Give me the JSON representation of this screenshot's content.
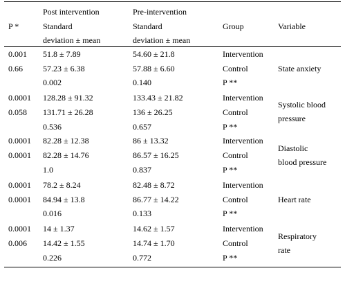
{
  "table": {
    "header": {
      "p_label": "P *",
      "post_title": "Post intervention",
      "post_sub1": "Standard",
      "post_sub2": "deviation  ±  mean",
      "pre_title": "Pre-intervention",
      "pre_sub1": "Standard",
      "pre_sub2": "deviation  ±  mean",
      "group": "Group",
      "variable": "Variable"
    },
    "blocks": [
      {
        "variable_lines": [
          "State anxiety"
        ],
        "rows": [
          {
            "p": "0.001",
            "post": "51.8 ± 7.89",
            "pre": "54.60 ± 21.8",
            "group": "Intervention"
          },
          {
            "p": "0.66",
            "post": "57.23 ± 6.38",
            "pre": "57.88 ± 6.60",
            "group": "Control"
          },
          {
            "p": "",
            "post": "0.002",
            "pre": "0.140",
            "group": "P **"
          }
        ]
      },
      {
        "variable_lines": [
          "Systolic blood",
          "pressure"
        ],
        "rows": [
          {
            "p": "0.0001",
            "post": "128.28 ± 91.32",
            "pre": "133.43 ± 21.82",
            "group": "Intervention"
          },
          {
            "p": "0.058",
            "post": "131.71 ± 26.28",
            "pre": "136 ± 26.25",
            "group": "Control"
          },
          {
            "p": "",
            "post": "0.536",
            "pre": "0.657",
            "group": "P **"
          }
        ]
      },
      {
        "variable_lines": [
          "Diastolic",
          "blood pressure"
        ],
        "rows": [
          {
            "p": "0.0001",
            "post": "82.28 ± 12.38",
            "pre": "86 ± 13.32",
            "group": "Intervention"
          },
          {
            "p": "0.0001",
            "post": "82.28 ± 14.76",
            "pre": "86.57 ± 16.25",
            "group": "Control"
          },
          {
            "p": "",
            "post": "1.0",
            "pre": "0.837",
            "group": "P **"
          }
        ]
      },
      {
        "variable_lines": [
          "Heart rate"
        ],
        "rows": [
          {
            "p": "0.0001",
            "post": "78.2 ± 8.24",
            "pre": "82.48 ± 8.72",
            "group": "Intervention"
          },
          {
            "p": "0.0001",
            "post": "84.94 ± 13.8",
            "pre": "86.77 ± 14.22",
            "group": "Control"
          },
          {
            "p": "",
            "post": "0.016",
            "pre": "0.133",
            "group": "P **"
          }
        ]
      },
      {
        "variable_lines": [
          "Respiratory",
          "rate"
        ],
        "rows": [
          {
            "p": "0.0001",
            "post": "14 ± 1.37",
            "pre": "14.62 ± 1.57",
            "group": "Intervention"
          },
          {
            "p": "0.006",
            "post": "14.42 ± 1.55",
            "pre": "14.74 ± 1.70",
            "group": "Control"
          },
          {
            "p": "",
            "post": "0.226",
            "pre": "0.772",
            "group": "P **"
          }
        ]
      }
    ]
  }
}
